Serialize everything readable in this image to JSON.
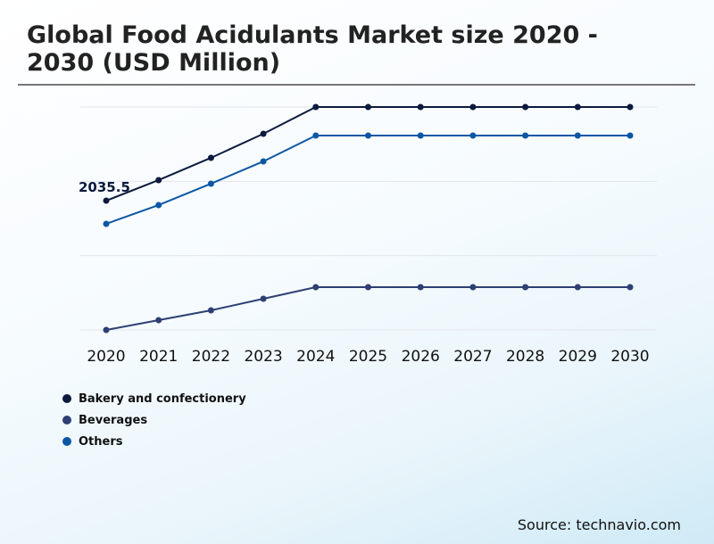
{
  "chart_data": {
    "type": "line",
    "title": "Global Food Acidulants Market size 2020 - 2030 (USD Million)",
    "x": [
      "2020",
      "2021",
      "2022",
      "2023",
      "2024",
      "2025",
      "2026",
      "2027",
      "2028",
      "2029",
      "2030"
    ],
    "ylim": [
      0,
      3510
    ],
    "grid": true,
    "legend_placement": "bottom-left",
    "series": [
      {
        "name": "Bakery and confectionery",
        "color": "#0c1a3d",
        "values": [
          2035.5,
          2359,
          2710,
          3089,
          3510,
          3510,
          3510,
          3510,
          3510,
          3510,
          3510
        ]
      },
      {
        "name": "Beverages",
        "color": "#2d3f73",
        "values": [
          0,
          154,
          309,
          491,
          674,
          674,
          674,
          674,
          674,
          674,
          674
        ]
      },
      {
        "name": "Others",
        "color": "#0b57a4",
        "values": [
          1671,
          1966,
          2303,
          2654,
          3061,
          3061,
          3061,
          3061,
          3061,
          3061,
          3061
        ]
      }
    ],
    "annotations": [
      {
        "series": "Bakery and confectionery",
        "x": "2020",
        "text": "2035.5"
      }
    ]
  },
  "source": "Source: technavio.com"
}
